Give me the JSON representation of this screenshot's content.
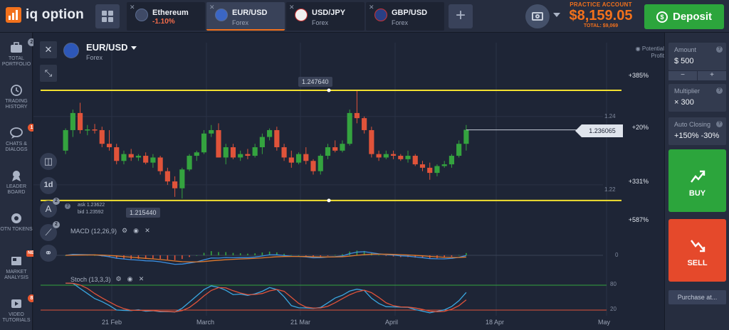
{
  "brand": {
    "name": "iq option"
  },
  "tabs": [
    {
      "name": "Ethereum",
      "sub": "-1.10%",
      "sub_negative": true,
      "active": false
    },
    {
      "name": "EUR/USD",
      "sub": "Forex",
      "sub_negative": false,
      "active": true
    },
    {
      "name": "USD/JPY",
      "sub": "Forex",
      "sub_negative": false,
      "active": false
    },
    {
      "name": "GBP/USD",
      "sub": "Forex",
      "sub_negative": false,
      "active": false
    }
  ],
  "account": {
    "type": "PRACTICE ACCOUNT",
    "balance": "$8,159.05",
    "total": "TOTAL: $9,069"
  },
  "deposit_label": "Deposit",
  "sidebar": [
    {
      "label": "TOTAL PORTFOLIO",
      "icon": "briefcase-icon",
      "badge": "2",
      "badge_red": false
    },
    {
      "label": "TRADING HISTORY",
      "icon": "history-icon",
      "badge": "",
      "badge_red": false
    },
    {
      "label": "CHATS & DIALOGS",
      "icon": "chat-icon",
      "badge": "1",
      "badge_red": true
    },
    {
      "label": "LEADER BOARD",
      "icon": "leaderboard-icon",
      "badge": "",
      "badge_red": false
    },
    {
      "label": "OTN TOKENS",
      "icon": "token-icon",
      "badge": "",
      "badge_red": false
    },
    {
      "label": "MARKET ANALYSIS",
      "icon": "news-icon",
      "badge": "NEW",
      "badge_red": true
    },
    {
      "label": "VIDEO TUTORIALS",
      "icon": "video-icon",
      "badge": "8",
      "badge_red": true
    }
  ],
  "chart_header": {
    "pair": "EUR/USD",
    "category": "Forex"
  },
  "chart_tools": {
    "timeframe": "1d",
    "draw_badge": "2",
    "indicator_badge": "2"
  },
  "quote": {
    "ask": "ask 1.23622",
    "bid": "bid 1.23592"
  },
  "potential_profit": "Potential Profit",
  "levels": {
    "high": "1.247640",
    "low": "1.215440",
    "current": "1.236065"
  },
  "axis": {
    "tick1": "1.24",
    "tick2": "1.22"
  },
  "profit_levels": [
    "+385%",
    "+20%",
    "+331%",
    "+587%"
  ],
  "indicators": {
    "macd": {
      "label": "MACD (12,26,9)",
      "zero": "0"
    },
    "stoch": {
      "label": "Stoch (13,3,3)",
      "upper": "80",
      "lower": "20"
    }
  },
  "dates": [
    "21 Feb",
    "March",
    "21 Mar",
    "April",
    "18 Apr",
    "May"
  ],
  "right_panel": {
    "amount_label": "Amount",
    "amount_value": "$  500",
    "stepper_minus": "−",
    "stepper_plus": "+",
    "multiplier_label": "Multiplier",
    "multiplier_value": "× 300",
    "auto_label": "Auto Closing",
    "auto_value": "+150% -30%",
    "buy_label": "BUY",
    "sell_label": "SELL",
    "purchase_label": "Purchase at..."
  },
  "colors": {
    "up": "#34a33f",
    "down": "#e0533a",
    "level_line": "#f2e030",
    "accent": "#f2711c"
  },
  "chart_data": {
    "type": "candlestick",
    "candles": [
      [
        1.23,
        1.2365,
        1.229,
        1.236
      ],
      [
        1.236,
        1.242,
        1.234,
        1.241
      ],
      [
        1.241,
        1.244,
        1.235,
        1.236
      ],
      [
        1.236,
        1.2375,
        1.2345,
        1.2362
      ],
      [
        1.2362,
        1.2378,
        1.235,
        1.236
      ],
      [
        1.236,
        1.237,
        1.231,
        1.232
      ],
      [
        1.232,
        1.236,
        1.23,
        1.231
      ],
      [
        1.231,
        1.232,
        1.226,
        1.227
      ],
      [
        1.227,
        1.23,
        1.226,
        1.229
      ],
      [
        1.229,
        1.2305,
        1.227,
        1.228
      ],
      [
        1.228,
        1.229,
        1.227,
        1.2285
      ],
      [
        1.2285,
        1.2295,
        1.226,
        1.2265
      ],
      [
        1.2265,
        1.229,
        1.225,
        1.228
      ],
      [
        1.228,
        1.2285,
        1.223,
        1.224
      ],
      [
        1.224,
        1.225,
        1.22,
        1.221
      ],
      [
        1.221,
        1.2225,
        1.2165,
        1.219
      ],
      [
        1.219,
        1.225,
        1.216,
        1.2245
      ],
      [
        1.2245,
        1.229,
        1.224,
        1.2285
      ],
      [
        1.2285,
        1.23,
        1.227,
        1.2295
      ],
      [
        1.2295,
        1.236,
        1.229,
        1.235
      ],
      [
        1.235,
        1.2375,
        1.234,
        1.236
      ],
      [
        1.236,
        1.238,
        1.228,
        1.228
      ],
      [
        1.228,
        1.232,
        1.226,
        1.231
      ],
      [
        1.231,
        1.232,
        1.2275,
        1.228
      ],
      [
        1.228,
        1.23,
        1.227,
        1.229
      ],
      [
        1.229,
        1.2305,
        1.2275,
        1.2285
      ],
      [
        1.2285,
        1.232,
        1.228,
        1.231
      ],
      [
        1.231,
        1.235,
        1.229,
        1.234
      ],
      [
        1.234,
        1.2365,
        1.233,
        1.236
      ],
      [
        1.236,
        1.237,
        1.23,
        1.231
      ],
      [
        1.231,
        1.232,
        1.227,
        1.228
      ],
      [
        1.228,
        1.23,
        1.225,
        1.2265
      ],
      [
        1.2265,
        1.2295,
        1.226,
        1.229
      ],
      [
        1.229,
        1.231,
        1.226,
        1.227
      ],
      [
        1.227,
        1.2275,
        1.223,
        1.224
      ],
      [
        1.224,
        1.229,
        1.223,
        1.2285
      ],
      [
        1.2285,
        1.232,
        1.2275,
        1.231
      ],
      [
        1.231,
        1.233,
        1.2295,
        1.23
      ],
      [
        1.23,
        1.233,
        1.2295,
        1.232
      ],
      [
        1.232,
        1.242,
        1.2315,
        1.241
      ],
      [
        1.241,
        1.2476,
        1.238,
        1.2395
      ],
      [
        1.2395,
        1.24,
        1.235,
        1.236
      ],
      [
        1.236,
        1.237,
        1.228,
        1.229
      ],
      [
        1.229,
        1.23,
        1.227,
        1.228
      ],
      [
        1.228,
        1.23,
        1.2275,
        1.229
      ],
      [
        1.229,
        1.23,
        1.2275,
        1.2285
      ],
      [
        1.2285,
        1.229,
        1.227,
        1.2275
      ],
      [
        1.2275,
        1.23,
        1.2265,
        1.2285
      ],
      [
        1.2285,
        1.229,
        1.2255,
        1.226
      ],
      [
        1.226,
        1.227,
        1.224,
        1.225
      ],
      [
        1.225,
        1.2265,
        1.2215,
        1.2235
      ],
      [
        1.2235,
        1.226,
        1.2225,
        1.2255
      ],
      [
        1.2255,
        1.227,
        1.225,
        1.226
      ],
      [
        1.226,
        1.229,
        1.225,
        1.2285
      ],
      [
        1.2285,
        1.233,
        1.228,
        1.232
      ],
      [
        1.232,
        1.2375,
        1.23,
        1.2361
      ]
    ],
    "levels": [
      1.24764,
      1.21544
    ],
    "current": 1.236065,
    "ylim": [
      1.2125,
      1.252
    ],
    "ticks": [
      1.24,
      1.22
    ]
  }
}
